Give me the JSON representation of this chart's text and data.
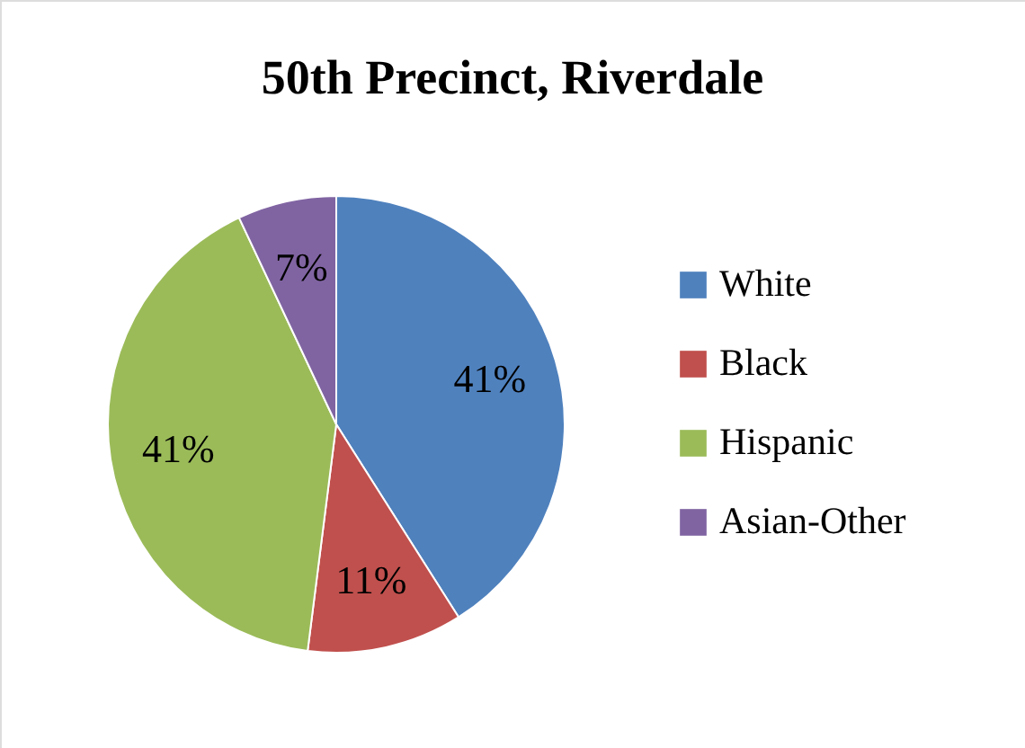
{
  "chart_data": {
    "type": "pie",
    "title": "50th Precinct, Riverdale",
    "categories": [
      "White",
      "Black",
      "Hispanic",
      "Asian-Other"
    ],
    "values": [
      41,
      11,
      41,
      7
    ],
    "colors": [
      "#4f81bd",
      "#c0504d",
      "#9bbb59",
      "#8064a2"
    ],
    "value_labels": [
      "41%",
      "11%",
      "41%",
      "7%"
    ],
    "legend": "right"
  }
}
